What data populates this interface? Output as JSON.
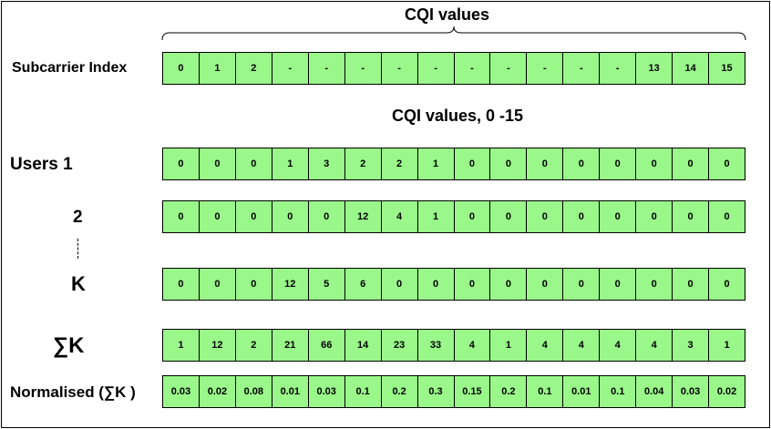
{
  "header": {
    "title": "CQI values",
    "subtitle": "CQI values, 0 -15"
  },
  "labels": {
    "subcarrier": "Subcarrier Index",
    "users": "Users 1",
    "user2": "2",
    "userK": "K",
    "sum": "∑K",
    "normalised": "Normalised (∑K )"
  },
  "rows": {
    "subcarrier": [
      "0",
      "1",
      "2",
      "-",
      "-",
      "-",
      "-",
      "-",
      "-",
      "-",
      "-",
      "-",
      "-",
      "13",
      "14",
      "15"
    ],
    "user1": [
      "0",
      "0",
      "0",
      "1",
      "3",
      "2",
      "2",
      "1",
      "0",
      "0",
      "0",
      "0",
      "0",
      "0",
      "0",
      "0"
    ],
    "user2": [
      "0",
      "0",
      "0",
      "0",
      "0",
      "12",
      "4",
      "1",
      "0",
      "0",
      "0",
      "0",
      "0",
      "0",
      "0",
      "0"
    ],
    "userK": [
      "0",
      "0",
      "0",
      "12",
      "5",
      "6",
      "0",
      "0",
      "0",
      "0",
      "0",
      "0",
      "0",
      "0",
      "0",
      "0"
    ],
    "sum": [
      "1",
      "12",
      "2",
      "21",
      "66",
      "14",
      "23",
      "33",
      "4",
      "1",
      "4",
      "4",
      "4",
      "4",
      "3",
      "1"
    ],
    "normalised": [
      "0.03",
      "0.02",
      "0.08",
      "0.01",
      "0.03",
      "0.1",
      "0.2",
      "0.3",
      "0.15",
      "0.2",
      "0.1",
      "0.01",
      "0.1",
      "0.04",
      "0.03",
      "0.02"
    ]
  },
  "colors": {
    "cell_fill": "#9af78a",
    "border": "#000000"
  }
}
